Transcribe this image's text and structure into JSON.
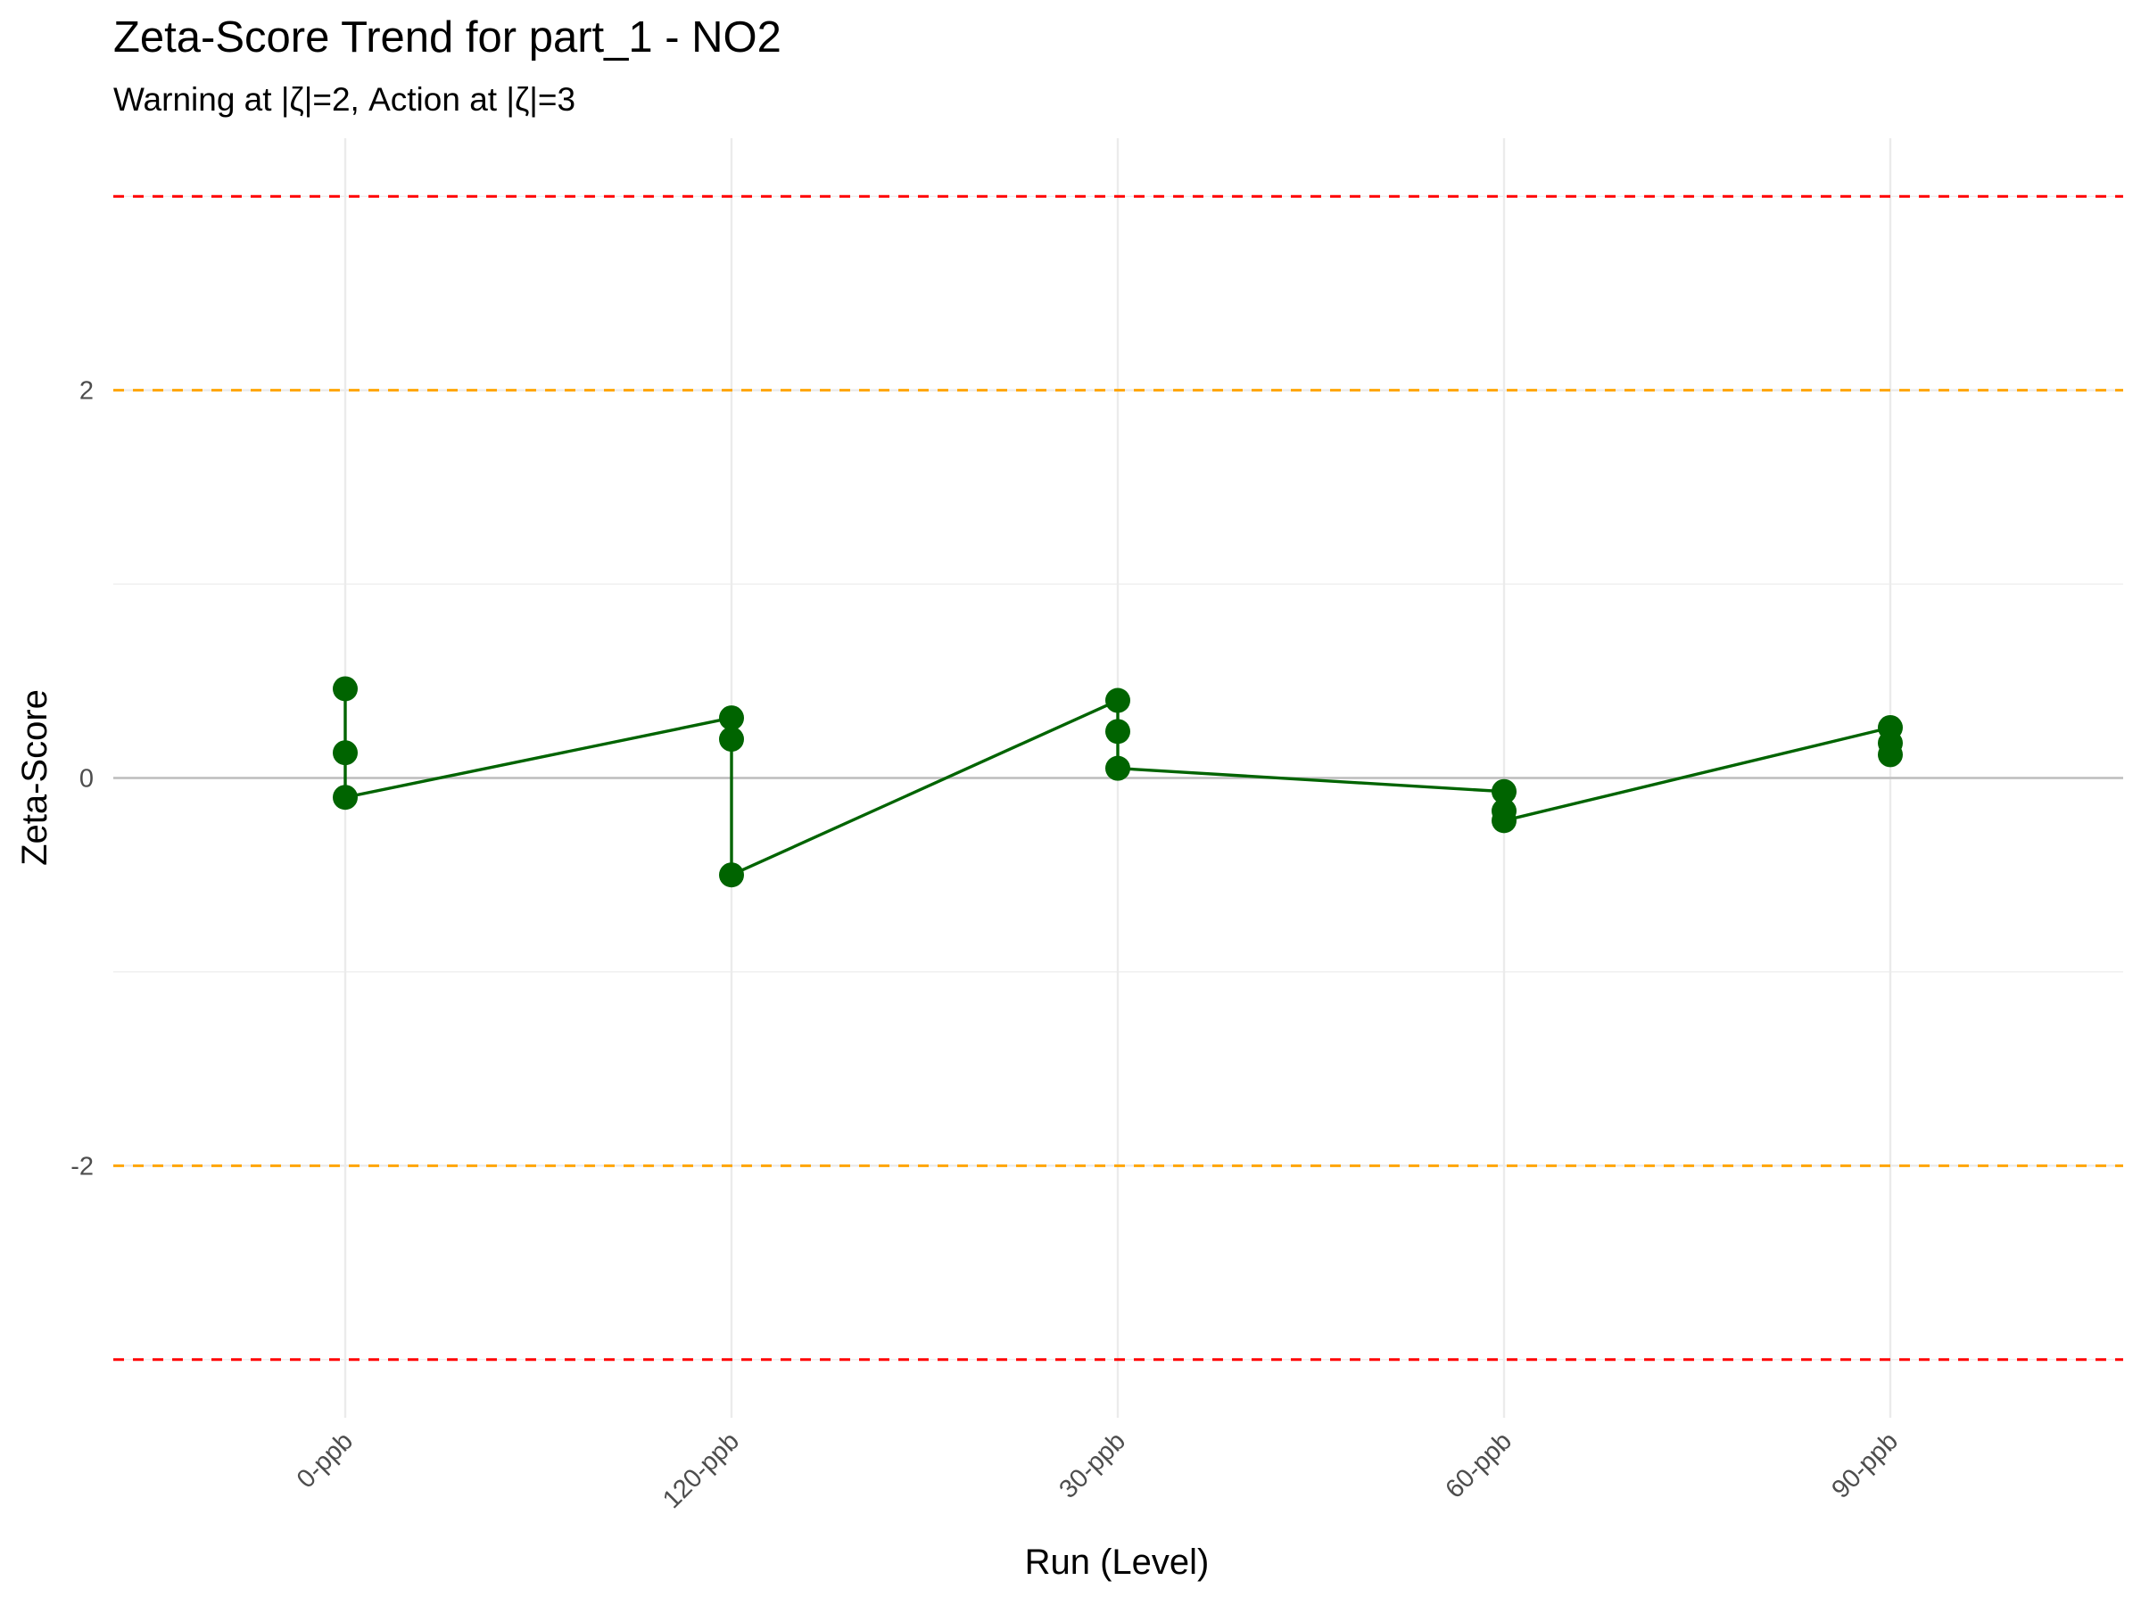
{
  "chart_data": {
    "type": "line",
    "title": "Zeta-Score Trend for part_1 - NO2",
    "subtitle": "Warning at |ζ|=2, Action at |ζ|=3",
    "xlabel": "Run (Level)",
    "ylabel": "Zeta-Score",
    "categories": [
      "0-ppb",
      "120-ppb",
      "30-ppb",
      "60-ppb",
      "90-ppb"
    ],
    "ylim": [
      -3.3,
      3.3
    ],
    "yticks": [
      -2,
      0,
      2
    ],
    "ytick_labels": [
      "-2",
      "0",
      "2"
    ],
    "grid": true,
    "legend": "none",
    "reference_lines": [
      {
        "y": 3,
        "kind": "action",
        "color": "#ff0000",
        "style": "dashed"
      },
      {
        "y": -3,
        "kind": "action",
        "color": "#ff0000",
        "style": "dashed"
      },
      {
        "y": 2,
        "kind": "warning",
        "color": "#ffa500",
        "style": "dashed"
      },
      {
        "y": -2,
        "kind": "warning",
        "color": "#ffa500",
        "style": "dashed"
      },
      {
        "y": 0,
        "kind": "zero",
        "color": "#bebebe",
        "style": "solid"
      }
    ],
    "series": [
      {
        "color": "#006400",
        "points": [
          {
            "x": "0-ppb",
            "y": 0.46
          },
          {
            "x": "0-ppb",
            "y": 0.13
          },
          {
            "x": "0-ppb",
            "y": -0.1
          },
          {
            "x": "120-ppb",
            "y": 0.31
          },
          {
            "x": "120-ppb",
            "y": 0.2
          },
          {
            "x": "120-ppb",
            "y": -0.5
          },
          {
            "x": "30-ppb",
            "y": 0.4
          },
          {
            "x": "30-ppb",
            "y": 0.24
          },
          {
            "x": "30-ppb",
            "y": 0.05
          },
          {
            "x": "60-ppb",
            "y": -0.07
          },
          {
            "x": "60-ppb",
            "y": -0.17
          },
          {
            "x": "60-ppb",
            "y": -0.22
          },
          {
            "x": "90-ppb",
            "y": 0.26
          },
          {
            "x": "90-ppb",
            "y": 0.18
          },
          {
            "x": "90-ppb",
            "y": 0.12
          }
        ]
      }
    ]
  }
}
